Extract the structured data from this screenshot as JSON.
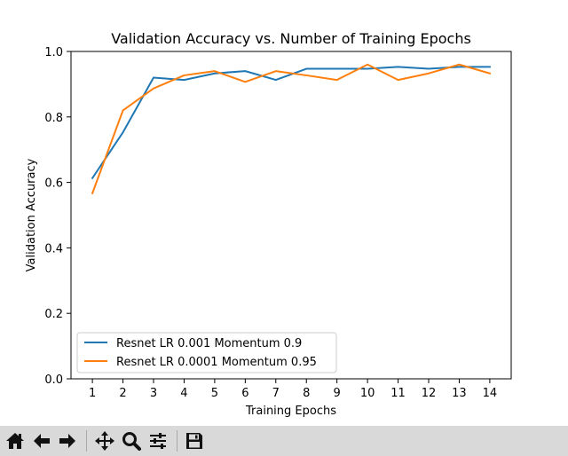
{
  "chart_data": {
    "type": "line",
    "title": "Validation Accuracy vs. Number of Training Epochs",
    "xlabel": "Training Epochs",
    "ylabel": "Validation Accuracy",
    "x": [
      1,
      2,
      3,
      4,
      5,
      6,
      7,
      8,
      9,
      10,
      11,
      12,
      13,
      14
    ],
    "xticks": [
      "1",
      "2",
      "3",
      "4",
      "5",
      "6",
      "7",
      "8",
      "9",
      "10",
      "11",
      "12",
      "13",
      "14"
    ],
    "xlim": [
      0.3,
      14.7
    ],
    "ylim": [
      0.0,
      1.0
    ],
    "yticks": [
      "0.0",
      "0.2",
      "0.4",
      "0.6",
      "0.8",
      "1.0"
    ],
    "yticks_values": [
      0.0,
      0.2,
      0.4,
      0.6,
      0.8,
      1.0
    ],
    "grid": false,
    "legend_position": "lower-left",
    "series": [
      {
        "name": "Resnet LR 0.001 Momentum 0.9",
        "color": "#1f77b4",
        "values": [
          0.613,
          0.753,
          0.92,
          0.913,
          0.933,
          0.94,
          0.913,
          0.947,
          0.947,
          0.947,
          0.953,
          0.947,
          0.953,
          0.953
        ]
      },
      {
        "name": "Resnet LR 0.0001 Momentum 0.95",
        "color": "#ff7f0e",
        "values": [
          0.567,
          0.82,
          0.887,
          0.927,
          0.94,
          0.907,
          0.94,
          0.927,
          0.913,
          0.96,
          0.913,
          0.933,
          0.96,
          0.933
        ]
      }
    ]
  },
  "toolbar": {
    "buttons": [
      "home-icon",
      "back-arrow-icon",
      "forward-arrow-icon",
      "pan-icon",
      "zoom-icon",
      "configure-subplots-icon",
      "save-icon"
    ],
    "background": "#d9d9d9"
  }
}
